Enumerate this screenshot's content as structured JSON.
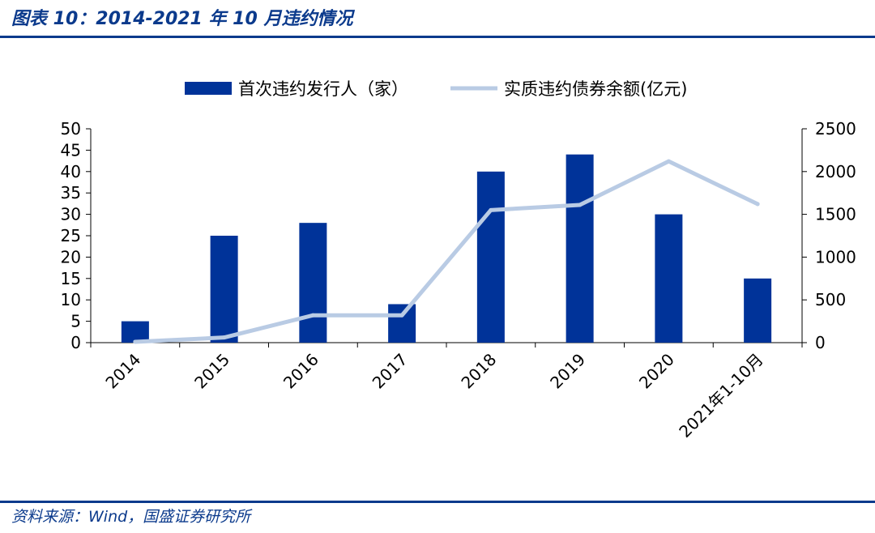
{
  "header": {
    "title": "图表 10：2014-2021 年 10 月违约情况"
  },
  "footer": {
    "source": "资料来源：Wind，国盛证券研究所"
  },
  "colors": {
    "brand": "#0b3a8c",
    "bar": "#003399",
    "line": "#b9cbe4",
    "axis": "#000000"
  },
  "chart_data": {
    "type": "bar",
    "title": "",
    "categories": [
      "2014",
      "2015",
      "2016",
      "2017",
      "2018",
      "2019",
      "2020",
      "2021年1-10月"
    ],
    "series": [
      {
        "name": "首次违约发行人（家）",
        "type": "bar",
        "axis": "left",
        "values": [
          5,
          25,
          28,
          9,
          40,
          44,
          30,
          15
        ]
      },
      {
        "name": "实质违约债券余额(亿元)",
        "type": "line",
        "axis": "right",
        "values": [
          10,
          60,
          320,
          320,
          1550,
          1610,
          2120,
          1620
        ]
      }
    ],
    "y_left": {
      "min": 0,
      "max": 50,
      "ticks": [
        0,
        5,
        10,
        15,
        20,
        25,
        30,
        35,
        40,
        45,
        50
      ]
    },
    "y_right": {
      "min": 0,
      "max": 2500,
      "ticks": [
        0,
        500,
        1000,
        1500,
        2000,
        2500
      ]
    },
    "grid": false,
    "legend_position": "top-center"
  }
}
